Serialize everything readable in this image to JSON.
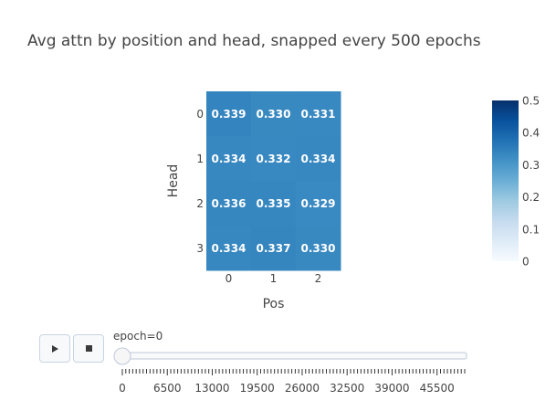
{
  "chart_data": {
    "type": "heatmap",
    "title": "Avg attn by position and head, snapped every 500 epochs",
    "xlabel": "Pos",
    "ylabel": "Head",
    "x": [
      "0",
      "1",
      "2"
    ],
    "y": [
      "0",
      "1",
      "2",
      "3"
    ],
    "z": [
      [
        0.339,
        0.33,
        0.331
      ],
      [
        0.334,
        0.332,
        0.334
      ],
      [
        0.336,
        0.335,
        0.329
      ],
      [
        0.334,
        0.337,
        0.33
      ]
    ],
    "text": [
      [
        "0.339",
        "0.330",
        "0.331"
      ],
      [
        "0.334",
        "0.332",
        "0.334"
      ],
      [
        "0.336",
        "0.335",
        "0.329"
      ],
      [
        "0.334",
        "0.337",
        "0.330"
      ]
    ],
    "zmin": 0,
    "zmax": 0.5,
    "colorscale": "Blues",
    "colorbar_ticks": [
      "0",
      "0.1",
      "0.2",
      "0.3",
      "0.4",
      "0.5"
    ]
  },
  "slider": {
    "current_label": "epoch=0",
    "min": 0,
    "max": 49500,
    "step": 500,
    "value": 0,
    "tick_labels": [
      "0",
      "6500",
      "13000",
      "19500",
      "26000",
      "32500",
      "39000",
      "45500"
    ]
  },
  "controls": {
    "play_icon": "play-icon",
    "stop_icon": "stop-icon"
  },
  "colors": {
    "text": "#444444",
    "cell_text": "#ffffff",
    "cell_fill": "#3282be",
    "rail": "#f8f9fb",
    "rail_border": "#bec8d9",
    "tick": "#333333"
  }
}
